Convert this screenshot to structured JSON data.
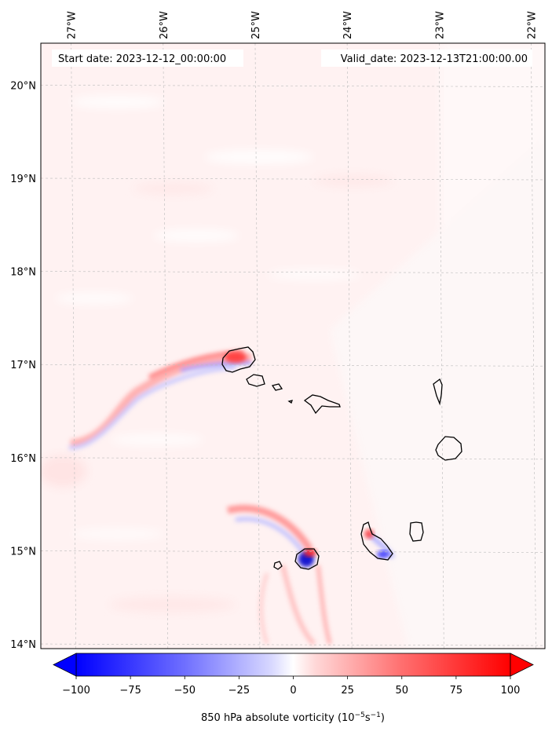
{
  "header": {
    "start_label": "Start date: 2023-12-12_00:00:00",
    "valid_label": "Valid_date: 2023-12-13T21:00:00.00"
  },
  "map": {
    "lon_ticks": [
      {
        "value": -27,
        "label": "27°W"
      },
      {
        "value": -26,
        "label": "26°W"
      },
      {
        "value": -25,
        "label": "25°W"
      },
      {
        "value": -24,
        "label": "24°W"
      },
      {
        "value": -23,
        "label": "23°W"
      },
      {
        "value": -22,
        "label": "22°W"
      }
    ],
    "lat_ticks": [
      {
        "value": 20,
        "label": "20°N"
      },
      {
        "value": 19,
        "label": "19°N"
      },
      {
        "value": 18,
        "label": "18°N"
      },
      {
        "value": 17,
        "label": "17°N"
      },
      {
        "value": 16,
        "label": "16°N"
      },
      {
        "value": 15,
        "label": "15°N"
      },
      {
        "value": 14,
        "label": "14°N"
      }
    ],
    "lon_range": [
      -27.33,
      -21.85
    ],
    "lat_range": [
      13.95,
      20.45
    ],
    "colors": {
      "positive": "#ff0000",
      "negative": "#0000ff",
      "coast": "#000000",
      "grid": "#bbbbbb"
    }
  },
  "colorbar": {
    "min": -100,
    "max": 100,
    "ticks": [
      {
        "value": -100,
        "label": "−100"
      },
      {
        "value": -75,
        "label": "−75"
      },
      {
        "value": -50,
        "label": "−50"
      },
      {
        "value": -25,
        "label": "−25"
      },
      {
        "value": 0,
        "label": "0"
      },
      {
        "value": 25,
        "label": "25"
      },
      {
        "value": 50,
        "label": "50"
      },
      {
        "value": 75,
        "label": "75"
      },
      {
        "value": 100,
        "label": "100"
      }
    ],
    "label": "850 hPa absolute vorticity (10",
    "label_exp1": "−5",
    "label_mid": "s",
    "label_exp2": "−1",
    "label_end": ")"
  }
}
